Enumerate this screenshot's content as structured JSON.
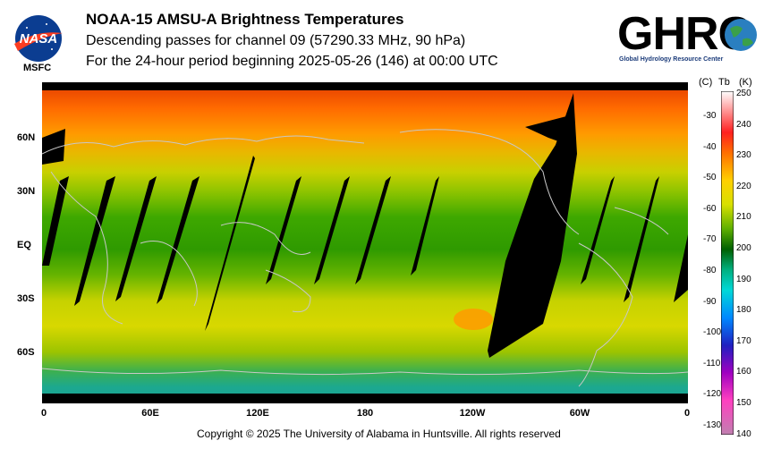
{
  "header": {
    "title": "NOAA-15 AMSU-A Brightness Temperatures",
    "line2": "Descending passes for channel 09 (57290.33 MHz, 90 hPa)",
    "line3": "For the 24-hour period beginning 2025-05-26 (146) at 00:00 UTC"
  },
  "logos": {
    "nasa_caption": "MSFC",
    "nasa_text": "NASA",
    "ghrc_text": "GHRC",
    "ghrc_caption": "Global Hydrology Resource Center"
  },
  "map": {
    "lat_labels": [
      "60N",
      "30N",
      "EQ",
      "30S",
      "60S"
    ],
    "lon_labels": [
      "0",
      "60E",
      "120E",
      "180",
      "120W",
      "60W",
      "0"
    ]
  },
  "colorbar": {
    "header_c": "(C)",
    "header_tb": "Tb",
    "header_k": "(K)",
    "kelvin_ticks": [
      "250",
      "240",
      "230",
      "220",
      "210",
      "200",
      "190",
      "180",
      "170",
      "160",
      "150",
      "140"
    ],
    "celsius_ticks": [
      "-30",
      "-40",
      "-50",
      "-60",
      "-70",
      "-80",
      "-90",
      "-100",
      "-110",
      "-120",
      "-130"
    ]
  },
  "footer": {
    "copyright": "Copyright © 2025 The University of Alabama in Huntsville.  All rights reserved"
  }
}
